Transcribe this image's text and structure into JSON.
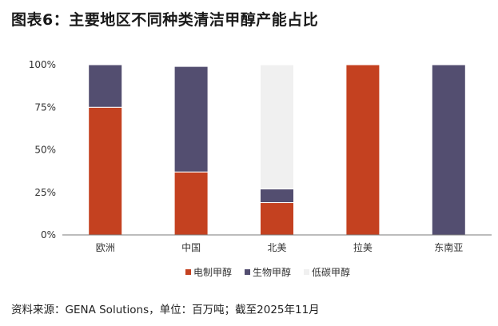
{
  "title": "图表6：主要地区不同种类清洁甲醇产能占比",
  "source": "资料来源：GENA Solutions，单位：百万吨；截至2025年11月",
  "chart_data": {
    "type": "bar",
    "stacked": true,
    "title": "图表6：主要地区不同种类清洁甲醇产能占比",
    "categories": [
      "欧洲",
      "中国",
      "北美",
      "拉美",
      "东南亚"
    ],
    "ylim": [
      0,
      1
    ],
    "yticks": [
      "0%",
      "25%",
      "50%",
      "75%",
      "100%"
    ],
    "grid": false,
    "legend_position": "bottom",
    "series": [
      {
        "name": "电制甲醇",
        "color": "#c44120",
        "values": [
          0.75,
          0.37,
          0.19,
          1.0,
          0.0
        ]
      },
      {
        "name": "生物甲醇",
        "color": "#534e70",
        "values": [
          0.25,
          0.62,
          0.08,
          0.0,
          1.0
        ]
      },
      {
        "name": "低碳甲醇",
        "color": "#f0f0f0",
        "values": [
          0.0,
          0.0,
          0.73,
          0.0,
          0.0
        ]
      }
    ]
  }
}
